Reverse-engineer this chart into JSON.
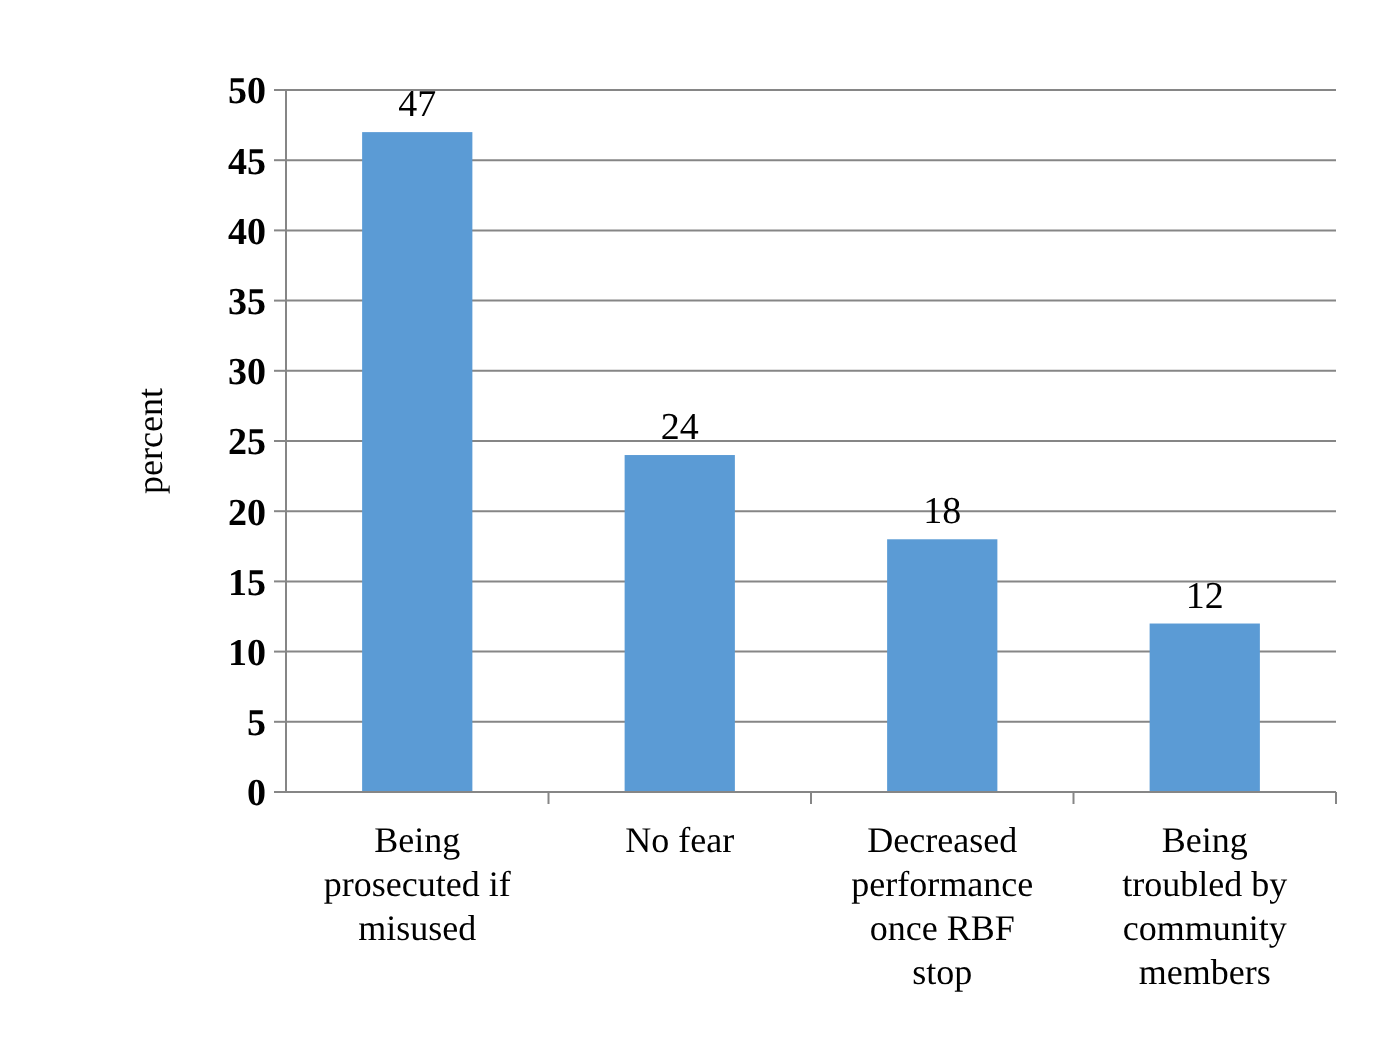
{
  "chart_data": {
    "type": "bar",
    "ylabel": "percent",
    "categories": [
      "Being prosecuted if misused",
      "No fear",
      "Decreased performance once RBF stop",
      "Being troubled by community members"
    ],
    "values": [
      47,
      24,
      18,
      12
    ],
    "color": "#5b9bd5",
    "ylim": [
      0,
      50
    ],
    "yticks": [
      0,
      5,
      10,
      15,
      20,
      25,
      30,
      35,
      40,
      45,
      50
    ],
    "grid": "y",
    "data_labels": true
  }
}
